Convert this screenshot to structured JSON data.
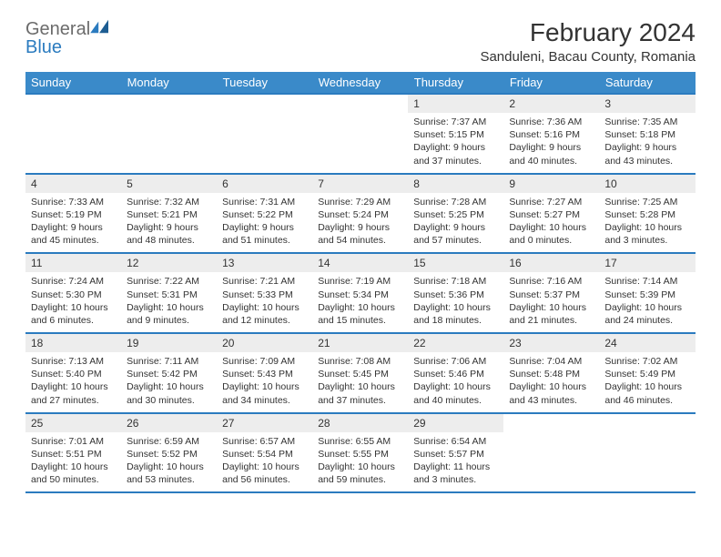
{
  "brand": {
    "word1": "General",
    "word2": "Blue"
  },
  "title": "February 2024",
  "location": "Sanduleni, Bacau County, Romania",
  "headers": [
    "Sunday",
    "Monday",
    "Tuesday",
    "Wednesday",
    "Thursday",
    "Friday",
    "Saturday"
  ],
  "colors": {
    "header_bg": "#3a8ac9",
    "header_fg": "#ffffff",
    "rule": "#2b7bbf",
    "daynum_bg": "#ededed",
    "text": "#333333",
    "logo_gray": "#6b6b6b",
    "logo_blue": "#2b7bbf",
    "page_bg": "#ffffff"
  },
  "weeks": [
    [
      {
        "n": "",
        "sr": "",
        "ss": "",
        "dl": ""
      },
      {
        "n": "",
        "sr": "",
        "ss": "",
        "dl": ""
      },
      {
        "n": "",
        "sr": "",
        "ss": "",
        "dl": ""
      },
      {
        "n": "",
        "sr": "",
        "ss": "",
        "dl": ""
      },
      {
        "n": "1",
        "sr": "Sunrise: 7:37 AM",
        "ss": "Sunset: 5:15 PM",
        "dl": "Daylight: 9 hours and 37 minutes."
      },
      {
        "n": "2",
        "sr": "Sunrise: 7:36 AM",
        "ss": "Sunset: 5:16 PM",
        "dl": "Daylight: 9 hours and 40 minutes."
      },
      {
        "n": "3",
        "sr": "Sunrise: 7:35 AM",
        "ss": "Sunset: 5:18 PM",
        "dl": "Daylight: 9 hours and 43 minutes."
      }
    ],
    [
      {
        "n": "4",
        "sr": "Sunrise: 7:33 AM",
        "ss": "Sunset: 5:19 PM",
        "dl": "Daylight: 9 hours and 45 minutes."
      },
      {
        "n": "5",
        "sr": "Sunrise: 7:32 AM",
        "ss": "Sunset: 5:21 PM",
        "dl": "Daylight: 9 hours and 48 minutes."
      },
      {
        "n": "6",
        "sr": "Sunrise: 7:31 AM",
        "ss": "Sunset: 5:22 PM",
        "dl": "Daylight: 9 hours and 51 minutes."
      },
      {
        "n": "7",
        "sr": "Sunrise: 7:29 AM",
        "ss": "Sunset: 5:24 PM",
        "dl": "Daylight: 9 hours and 54 minutes."
      },
      {
        "n": "8",
        "sr": "Sunrise: 7:28 AM",
        "ss": "Sunset: 5:25 PM",
        "dl": "Daylight: 9 hours and 57 minutes."
      },
      {
        "n": "9",
        "sr": "Sunrise: 7:27 AM",
        "ss": "Sunset: 5:27 PM",
        "dl": "Daylight: 10 hours and 0 minutes."
      },
      {
        "n": "10",
        "sr": "Sunrise: 7:25 AM",
        "ss": "Sunset: 5:28 PM",
        "dl": "Daylight: 10 hours and 3 minutes."
      }
    ],
    [
      {
        "n": "11",
        "sr": "Sunrise: 7:24 AM",
        "ss": "Sunset: 5:30 PM",
        "dl": "Daylight: 10 hours and 6 minutes."
      },
      {
        "n": "12",
        "sr": "Sunrise: 7:22 AM",
        "ss": "Sunset: 5:31 PM",
        "dl": "Daylight: 10 hours and 9 minutes."
      },
      {
        "n": "13",
        "sr": "Sunrise: 7:21 AM",
        "ss": "Sunset: 5:33 PM",
        "dl": "Daylight: 10 hours and 12 minutes."
      },
      {
        "n": "14",
        "sr": "Sunrise: 7:19 AM",
        "ss": "Sunset: 5:34 PM",
        "dl": "Daylight: 10 hours and 15 minutes."
      },
      {
        "n": "15",
        "sr": "Sunrise: 7:18 AM",
        "ss": "Sunset: 5:36 PM",
        "dl": "Daylight: 10 hours and 18 minutes."
      },
      {
        "n": "16",
        "sr": "Sunrise: 7:16 AM",
        "ss": "Sunset: 5:37 PM",
        "dl": "Daylight: 10 hours and 21 minutes."
      },
      {
        "n": "17",
        "sr": "Sunrise: 7:14 AM",
        "ss": "Sunset: 5:39 PM",
        "dl": "Daylight: 10 hours and 24 minutes."
      }
    ],
    [
      {
        "n": "18",
        "sr": "Sunrise: 7:13 AM",
        "ss": "Sunset: 5:40 PM",
        "dl": "Daylight: 10 hours and 27 minutes."
      },
      {
        "n": "19",
        "sr": "Sunrise: 7:11 AM",
        "ss": "Sunset: 5:42 PM",
        "dl": "Daylight: 10 hours and 30 minutes."
      },
      {
        "n": "20",
        "sr": "Sunrise: 7:09 AM",
        "ss": "Sunset: 5:43 PM",
        "dl": "Daylight: 10 hours and 34 minutes."
      },
      {
        "n": "21",
        "sr": "Sunrise: 7:08 AM",
        "ss": "Sunset: 5:45 PM",
        "dl": "Daylight: 10 hours and 37 minutes."
      },
      {
        "n": "22",
        "sr": "Sunrise: 7:06 AM",
        "ss": "Sunset: 5:46 PM",
        "dl": "Daylight: 10 hours and 40 minutes."
      },
      {
        "n": "23",
        "sr": "Sunrise: 7:04 AM",
        "ss": "Sunset: 5:48 PM",
        "dl": "Daylight: 10 hours and 43 minutes."
      },
      {
        "n": "24",
        "sr": "Sunrise: 7:02 AM",
        "ss": "Sunset: 5:49 PM",
        "dl": "Daylight: 10 hours and 46 minutes."
      }
    ],
    [
      {
        "n": "25",
        "sr": "Sunrise: 7:01 AM",
        "ss": "Sunset: 5:51 PM",
        "dl": "Daylight: 10 hours and 50 minutes."
      },
      {
        "n": "26",
        "sr": "Sunrise: 6:59 AM",
        "ss": "Sunset: 5:52 PM",
        "dl": "Daylight: 10 hours and 53 minutes."
      },
      {
        "n": "27",
        "sr": "Sunrise: 6:57 AM",
        "ss": "Sunset: 5:54 PM",
        "dl": "Daylight: 10 hours and 56 minutes."
      },
      {
        "n": "28",
        "sr": "Sunrise: 6:55 AM",
        "ss": "Sunset: 5:55 PM",
        "dl": "Daylight: 10 hours and 59 minutes."
      },
      {
        "n": "29",
        "sr": "Sunrise: 6:54 AM",
        "ss": "Sunset: 5:57 PM",
        "dl": "Daylight: 11 hours and 3 minutes."
      },
      {
        "n": "",
        "sr": "",
        "ss": "",
        "dl": ""
      },
      {
        "n": "",
        "sr": "",
        "ss": "",
        "dl": ""
      }
    ]
  ]
}
